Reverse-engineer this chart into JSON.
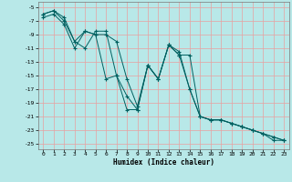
{
  "xlabel": "Humidex (Indice chaleur)",
  "bg_color": "#b8e8e8",
  "grid_color": "#e8a0a0",
  "line_color": "#006060",
  "xlim_min": -0.5,
  "xlim_max": 23.5,
  "ylim_min": -25.8,
  "ylim_max": -4.2,
  "yticks": [
    -5,
    -7,
    -9,
    -11,
    -13,
    -15,
    -17,
    -19,
    -21,
    -23,
    -25
  ],
  "xticks": [
    0,
    1,
    2,
    3,
    4,
    5,
    6,
    7,
    8,
    9,
    10,
    11,
    12,
    13,
    14,
    15,
    16,
    17,
    18,
    19,
    20,
    21,
    22,
    23
  ],
  "line1_x": [
    0,
    1,
    2,
    3,
    4,
    5,
    6,
    7,
    8,
    9,
    10,
    11,
    12,
    13,
    14,
    15,
    16,
    17,
    18,
    19,
    20,
    21,
    22,
    23
  ],
  "line1_y": [
    -6,
    -5.5,
    -6.5,
    -10,
    -11,
    -8.5,
    -8.5,
    -15,
    -18,
    -20,
    -13.5,
    -15.5,
    -10.5,
    -11.5,
    -17,
    -21,
    -21.5,
    -21.5,
    -22,
    -22.5,
    -23,
    -23.5,
    -24,
    -24.5
  ],
  "line2_x": [
    0,
    1,
    2,
    3,
    4,
    5,
    6,
    7,
    8,
    9,
    10,
    11,
    12,
    13,
    14,
    15,
    16,
    17,
    18,
    19,
    20,
    21,
    22,
    23
  ],
  "line2_y": [
    -6,
    -5.5,
    -7,
    -10,
    -8.5,
    -9,
    -15.5,
    -15,
    -20,
    -20,
    -13.5,
    -15.5,
    -10.5,
    -12,
    -17,
    -21,
    -21.5,
    -21.5,
    -22,
    -22.5,
    -23,
    -23.5,
    -24.5,
    -24.5
  ],
  "line3_x": [
    0,
    1,
    2,
    3,
    4,
    5,
    6,
    7,
    8,
    9,
    10,
    11,
    12,
    13,
    14,
    15,
    16,
    17,
    18,
    19,
    20,
    21,
    22,
    23
  ],
  "line3_y": [
    -6.5,
    -6,
    -7.5,
    -11,
    -8.5,
    -9,
    -9,
    -10,
    -15.5,
    -19.5,
    -13.5,
    -15.5,
    -10.5,
    -12,
    -12,
    -21,
    -21.5,
    -21.5,
    -22,
    -22.5,
    -23,
    -23.5,
    -24,
    -24.5
  ]
}
